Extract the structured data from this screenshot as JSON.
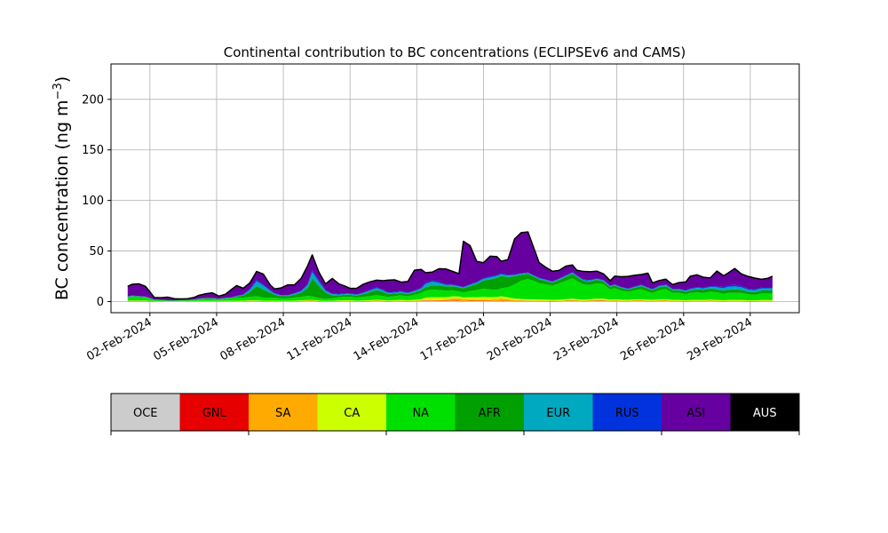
{
  "chart_data": {
    "type": "area",
    "title": "Continental contribution to BC concentrations (ECLIPSEv6 and CAMS)",
    "xlabel": "",
    "ylabel": "BC concentration (ng m⁻³)",
    "xlim": [
      -0.75,
      30.2
    ],
    "ylim": [
      -11,
      235
    ],
    "grid": true,
    "yticks": [
      0,
      50,
      100,
      150,
      200
    ],
    "xtick_positions": [
      1,
      4,
      7,
      10,
      13,
      16,
      19,
      22,
      25,
      28
    ],
    "xtick_labels": [
      "02-Feb-2024",
      "05-Feb-2024",
      "08-Feb-2024",
      "11-Feb-2024",
      "14-Feb-2024",
      "17-Feb-2024",
      "20-Feb-2024",
      "23-Feb-2024",
      "26-Feb-2024",
      "29-Feb-2024"
    ],
    "x_days_since_feb1": [
      0.0,
      0.2,
      0.5,
      0.8,
      1.0,
      1.2,
      1.5,
      1.8,
      2.1,
      2.4,
      2.7,
      3.0,
      3.2,
      3.5,
      3.8,
      4.1,
      4.4,
      4.7,
      4.9,
      5.2,
      5.5,
      5.8,
      6.1,
      6.4,
      6.6,
      6.9,
      7.2,
      7.5,
      7.8,
      8.1,
      8.3,
      8.6,
      8.9,
      9.2,
      9.5,
      9.8,
      10.0,
      10.3,
      10.6,
      10.9,
      11.2,
      11.5,
      11.7,
      12.0,
      12.3,
      12.6,
      12.9,
      13.2,
      13.4,
      13.7,
      14.0,
      14.3,
      14.6,
      14.9,
      15.1,
      15.4,
      15.7,
      16.0,
      16.3,
      16.6,
      16.8,
      17.1,
      17.4,
      17.7,
      18.0,
      18.3,
      18.5,
      18.8,
      19.1,
      19.4,
      19.7,
      20.0,
      20.2,
      20.5,
      20.8,
      21.1,
      21.4,
      21.7,
      21.9,
      22.2,
      22.5,
      22.8,
      23.1,
      23.4,
      23.6,
      23.9,
      24.2,
      24.5,
      24.8,
      25.1,
      25.3,
      25.6,
      25.9,
      26.2,
      26.5,
      26.8,
      27.0,
      27.3,
      27.6,
      27.9,
      28.2,
      28.5,
      28.8,
      29.0
    ],
    "legend": {
      "placement": "below-plot",
      "style": "colorbar",
      "entries": [
        {
          "label": "OCE",
          "color": "#cccccc",
          "text_color": "#000000"
        },
        {
          "label": "GNL",
          "color": "#e60000",
          "text_color": "#000000"
        },
        {
          "label": "SA",
          "color": "#ffaa00",
          "text_color": "#000000"
        },
        {
          "label": "CA",
          "color": "#ccff00",
          "text_color": "#000000"
        },
        {
          "label": "NA",
          "color": "#00e000",
          "text_color": "#000000"
        },
        {
          "label": "AFR",
          "color": "#00a000",
          "text_color": "#000000"
        },
        {
          "label": "EUR",
          "color": "#00a8c0",
          "text_color": "#000000"
        },
        {
          "label": "RUS",
          "color": "#0033dd",
          "text_color": "#000000"
        },
        {
          "label": "ASI",
          "color": "#6600a0",
          "text_color": "#000000"
        },
        {
          "label": "AUS",
          "color": "#000000",
          "text_color": "#ffffff"
        }
      ]
    },
    "series": [
      {
        "name": "OCE",
        "color": "#cccccc",
        "values": [
          0.3,
          0.3,
          0.3,
          0.3,
          0.2,
          0.1,
          0.1,
          0.1,
          0.1,
          0.1,
          0.1,
          0.1,
          0.1,
          0.1,
          0.1,
          0.1,
          0.1,
          0.1,
          0.2,
          0.2,
          0.3,
          0.3,
          0.2,
          0.2,
          0.2,
          0.1,
          0.1,
          0.2,
          0.3,
          0.4,
          0.4,
          0.2,
          0.1,
          0.2,
          0.3,
          0.3,
          0.3,
          0.2,
          0.2,
          0.3,
          0.4,
          0.3,
          0.2,
          0.3,
          0.3,
          0.2,
          0.3,
          0.4,
          0.6,
          0.6,
          0.5,
          0.5,
          0.6,
          0.4,
          0.3,
          0.5,
          0.5,
          0.5,
          0.4,
          0.3,
          0.4,
          0.4,
          0.3,
          0.3,
          0.3,
          0.3,
          0.3,
          0.3,
          0.2,
          0.3,
          0.4,
          0.5,
          0.4,
          0.3,
          0.4,
          0.5,
          0.5,
          0.3,
          0.4,
          0.3,
          0.3,
          0.4,
          0.4,
          0.3,
          0.3,
          0.4,
          0.4,
          0.3,
          0.3,
          0.2,
          0.3,
          0.3,
          0.3,
          0.4,
          0.3,
          0.2,
          0.3,
          0.3,
          0.3,
          0.2,
          0.2,
          0.3,
          0.3,
          0.3
        ]
      },
      {
        "name": "GNL",
        "color": "#e60000",
        "values": [
          0.2,
          0.2,
          0.2,
          0.2,
          0.2,
          0.1,
          0.1,
          0.1,
          0.1,
          0.1,
          0.1,
          0.1,
          0.1,
          0.1,
          0.1,
          0.1,
          0.1,
          0.1,
          0.1,
          0.1,
          0.2,
          0.2,
          0.1,
          0.1,
          0.1,
          0.1,
          0.1,
          0.1,
          0.2,
          0.3,
          0.3,
          0.2,
          0.1,
          0.1,
          0.2,
          0.2,
          0.2,
          0.1,
          0.2,
          0.2,
          0.3,
          0.2,
          0.2,
          0.2,
          0.2,
          0.2,
          0.2,
          0.3,
          0.5,
          0.5,
          0.4,
          0.4,
          0.5,
          0.3,
          0.2,
          0.4,
          0.4,
          0.4,
          0.3,
          0.2,
          0.3,
          0.3,
          0.2,
          0.2,
          0.2,
          0.2,
          0.2,
          0.2,
          0.2,
          0.2,
          0.3,
          0.4,
          0.3,
          0.2,
          0.3,
          0.4,
          0.4,
          0.2,
          0.3,
          0.2,
          0.2,
          0.3,
          0.3,
          0.2,
          0.2,
          0.3,
          0.3,
          0.2,
          0.2,
          0.2,
          0.2,
          0.2,
          0.2,
          0.3,
          0.2,
          0.2,
          0.2,
          0.2,
          0.2,
          0.2,
          0.2,
          0.2,
          0.2,
          0.2
        ]
      },
      {
        "name": "SA",
        "color": "#ffaa00",
        "values": [
          0.1,
          0.1,
          0.1,
          0.1,
          0.1,
          0.1,
          0.1,
          0.1,
          0.1,
          0.1,
          0.1,
          0.1,
          0.1,
          0.1,
          0.1,
          0.1,
          0.1,
          0.1,
          0.1,
          0.1,
          0.1,
          0.1,
          0.1,
          0.1,
          0.1,
          0.1,
          0.1,
          0.1,
          0.1,
          0.1,
          0.1,
          0.1,
          0.1,
          0.1,
          0.1,
          0.1,
          0.1,
          0.1,
          0.1,
          0.1,
          0.1,
          0.1,
          0.1,
          0.1,
          0.1,
          0.1,
          0.2,
          0.2,
          0.3,
          0.3,
          0.5,
          1.0,
          2.0,
          2.5,
          2.0,
          1.5,
          1.0,
          0.8,
          1.2,
          2.0,
          2.5,
          1.5,
          1.0,
          0.8,
          0.6,
          0.5,
          0.4,
          0.3,
          0.3,
          0.2,
          0.2,
          0.2,
          0.2,
          0.2,
          0.2,
          0.3,
          0.3,
          0.2,
          0.2,
          0.2,
          0.2,
          0.2,
          0.2,
          0.2,
          0.2,
          0.2,
          0.2,
          0.2,
          0.2,
          0.1,
          0.1,
          0.1,
          0.1,
          0.1,
          0.1,
          0.1,
          0.1,
          0.1,
          0.1,
          0.1,
          0.1,
          0.1,
          0.1,
          0.1
        ]
      },
      {
        "name": "CA",
        "color": "#ccff00",
        "values": [
          0.4,
          0.4,
          0.4,
          0.4,
          0.3,
          0.2,
          0.2,
          0.1,
          0.1,
          0.2,
          0.2,
          0.2,
          0.3,
          0.3,
          0.3,
          0.3,
          0.4,
          0.4,
          0.5,
          0.5,
          0.6,
          0.6,
          0.5,
          0.5,
          0.5,
          0.4,
          0.4,
          0.5,
          0.6,
          0.8,
          0.8,
          0.5,
          0.3,
          0.4,
          0.6,
          0.7,
          0.7,
          0.5,
          0.6,
          0.8,
          1.0,
          0.8,
          0.6,
          0.8,
          1.0,
          0.8,
          1.0,
          1.5,
          2.5,
          3.0,
          3.0,
          2.5,
          2.0,
          1.8,
          1.5,
          2.0,
          2.5,
          3.0,
          2.5,
          2.0,
          2.0,
          2.0,
          1.5,
          1.3,
          1.2,
          1.2,
          1.2,
          1.2,
          1.0,
          1.2,
          1.5,
          1.8,
          1.5,
          1.2,
          1.5,
          1.8,
          1.8,
          1.2,
          1.4,
          1.2,
          1.0,
          1.3,
          1.4,
          1.1,
          1.0,
          1.3,
          1.4,
          1.0,
          1.0,
          0.8,
          1.0,
          1.0,
          1.0,
          1.2,
          1.0,
          0.8,
          1.0,
          1.0,
          1.0,
          0.8,
          0.7,
          0.9,
          0.9,
          0.9
        ]
      },
      {
        "name": "NA",
        "color": "#00e000",
        "values": [
          3.0,
          4.0,
          3.5,
          3.0,
          2.0,
          1.0,
          0.8,
          0.6,
          0.5,
          0.6,
          0.8,
          1.0,
          1.5,
          2.0,
          2.0,
          1.5,
          2.0,
          2.5,
          3.0,
          3.0,
          3.5,
          4.0,
          3.0,
          3.0,
          3.0,
          2.5,
          2.5,
          3.0,
          3.5,
          4.0,
          3.5,
          2.5,
          2.0,
          2.5,
          3.0,
          3.5,
          3.5,
          3.0,
          3.5,
          4.0,
          4.5,
          4.0,
          3.5,
          4.0,
          4.5,
          4.0,
          5.0,
          6.0,
          7.0,
          7.5,
          7.0,
          6.5,
          6.0,
          5.0,
          5.0,
          6.0,
          7.0,
          8.0,
          7.5,
          7.0,
          8.0,
          10.0,
          14.0,
          18.0,
          20.0,
          18.0,
          16.0,
          15.0,
          14.0,
          16.0,
          18.0,
          20.0,
          18.0,
          15.0,
          14.0,
          15.0,
          14.0,
          10.0,
          11.0,
          9.0,
          8.0,
          9.0,
          10.0,
          8.0,
          7.0,
          9.0,
          10.0,
          7.0,
          7.0,
          6.0,
          7.0,
          7.5,
          7.0,
          8.0,
          7.5,
          6.5,
          7.0,
          7.0,
          7.0,
          6.0,
          5.5,
          6.5,
          6.5,
          6.5
        ]
      },
      {
        "name": "AFR",
        "color": "#00a000",
        "values": [
          0.5,
          0.5,
          0.5,
          0.5,
          0.4,
          0.2,
          0.2,
          0.1,
          0.1,
          0.2,
          0.2,
          0.3,
          0.5,
          0.5,
          0.5,
          0.4,
          0.5,
          0.6,
          1.0,
          2.0,
          5.0,
          10.0,
          8.0,
          5.0,
          3.0,
          2.0,
          2.0,
          3.0,
          4.0,
          8.0,
          18.0,
          12.0,
          6.0,
          3.0,
          2.0,
          2.0,
          2.0,
          2.0,
          3.0,
          4.0,
          5.0,
          4.0,
          3.0,
          2.5,
          2.5,
          2.0,
          2.5,
          3.0,
          3.5,
          4.0,
          4.5,
          4.0,
          4.0,
          4.0,
          4.0,
          5.0,
          6.0,
          8.0,
          10.0,
          12.0,
          12.0,
          10.0,
          8.0,
          6.0,
          5.0,
          4.0,
          4.0,
          3.5,
          3.0,
          3.5,
          4.0,
          4.5,
          4.0,
          3.5,
          3.5,
          3.5,
          3.0,
          2.5,
          2.5,
          2.5,
          2.0,
          2.5,
          3.0,
          3.0,
          2.5,
          3.0,
          3.0,
          2.5,
          2.5,
          2.5,
          2.5,
          3.0,
          3.0,
          3.0,
          3.0,
          3.0,
          3.0,
          3.5,
          3.0,
          2.5,
          2.5,
          3.0,
          3.0,
          3.0
        ]
      },
      {
        "name": "EUR",
        "color": "#00a8c0",
        "values": [
          0.3,
          0.3,
          0.3,
          0.3,
          0.2,
          0.1,
          0.1,
          0.1,
          0.1,
          0.1,
          0.1,
          0.2,
          0.3,
          0.3,
          0.3,
          0.2,
          0.3,
          0.4,
          0.5,
          0.8,
          2.0,
          5.0,
          4.0,
          2.0,
          1.0,
          0.8,
          0.8,
          1.0,
          1.5,
          3.0,
          6.0,
          4.0,
          2.0,
          1.0,
          0.8,
          0.8,
          0.8,
          0.8,
          1.0,
          1.5,
          2.0,
          1.5,
          1.0,
          1.0,
          1.0,
          1.0,
          1.2,
          1.5,
          3.0,
          4.0,
          2.5,
          1.5,
          1.2,
          1.0,
          1.0,
          1.2,
          1.5,
          1.8,
          2.0,
          2.0,
          1.8,
          1.5,
          1.2,
          1.0,
          1.0,
          1.0,
          1.0,
          0.9,
          0.8,
          0.9,
          1.0,
          1.2,
          1.0,
          0.9,
          1.0,
          1.0,
          0.9,
          0.8,
          0.8,
          0.7,
          0.7,
          0.8,
          0.9,
          0.8,
          0.8,
          1.0,
          1.2,
          1.0,
          1.0,
          1.0,
          1.2,
          1.5,
          1.5,
          1.5,
          2.0,
          2.5,
          3.0,
          3.0,
          2.5,
          2.0,
          2.0,
          2.0,
          2.0,
          2.0
        ]
      },
      {
        "name": "RUS",
        "color": "#0033dd",
        "values": [
          0.2,
          0.2,
          0.2,
          0.2,
          0.2,
          0.1,
          0.1,
          0.1,
          0.1,
          0.1,
          0.1,
          0.1,
          0.2,
          0.2,
          0.2,
          0.1,
          0.2,
          0.2,
          0.3,
          0.4,
          0.8,
          1.5,
          1.2,
          0.8,
          0.5,
          0.4,
          0.4,
          0.5,
          0.6,
          1.0,
          2.0,
          1.5,
          0.8,
          0.5,
          0.4,
          0.4,
          0.4,
          0.4,
          0.5,
          0.6,
          0.8,
          0.6,
          0.5,
          0.5,
          0.5,
          0.5,
          0.6,
          0.8,
          1.0,
          1.2,
          1.0,
          0.8,
          0.6,
          0.5,
          0.5,
          0.6,
          0.7,
          0.8,
          0.9,
          0.9,
          0.8,
          0.7,
          0.6,
          0.5,
          0.5,
          0.5,
          0.5,
          0.4,
          0.4,
          0.4,
          0.5,
          0.5,
          0.5,
          0.4,
          0.5,
          0.5,
          0.4,
          0.4,
          0.4,
          0.4,
          0.4,
          0.4,
          0.5,
          0.4,
          0.4,
          0.5,
          0.6,
          0.5,
          0.5,
          0.5,
          0.6,
          0.8,
          0.8,
          0.8,
          1.0,
          1.2,
          1.5,
          1.5,
          1.2,
          1.0,
          1.0,
          1.0,
          1.0,
          1.0
        ]
      },
      {
        "name": "ASI",
        "color": "#6600a0",
        "values": [
          10.0,
          11.0,
          12.0,
          10.0,
          6.0,
          2.0,
          2.0,
          3.0,
          1.5,
          1.0,
          1.0,
          2.0,
          3.0,
          4.0,
          5.0,
          2.5,
          3.5,
          8.0,
          10.0,
          6.0,
          6.0,
          8.0,
          10.0,
          5.0,
          4.0,
          7.0,
          10.0,
          8.0,
          12.0,
          18.0,
          15.0,
          8.0,
          6.0,
          15.0,
          10.0,
          7.0,
          5.0,
          6.0,
          8.0,
          8.0,
          7.0,
          9.0,
          12.0,
          12.0,
          9.0,
          11.0,
          20.0,
          18.0,
          10.0,
          8.0,
          13.0,
          15.0,
          13.0,
          12.0,
          45.0,
          38.0,
          20.0,
          15.0,
          20.0,
          18.0,
          12.0,
          15.0,
          35.0,
          40.0,
          40.0,
          25.0,
          15.0,
          12.0,
          10.0,
          8.0,
          9.0,
          7.0,
          5.0,
          8.0,
          8.0,
          7.0,
          6.0,
          5.0,
          8.0,
          10.0,
          12.0,
          11.0,
          10.0,
          14.0,
          6.0,
          5.0,
          5.0,
          4.0,
          6.0,
          8.0,
          12.0,
          12.0,
          10.0,
          8.0,
          15.0,
          11.0,
          12.0,
          16.0,
          12.0,
          12.0,
          11.0,
          8.0,
          9.0,
          11.0
        ]
      },
      {
        "name": "AUS",
        "color": "#000000",
        "values": [
          0.1,
          0.1,
          0.1,
          0.1,
          0.1,
          0.1,
          0.1,
          0.1,
          0.1,
          0.1,
          0.1,
          0.1,
          0.1,
          0.1,
          0.1,
          0.1,
          0.1,
          0.1,
          0.1,
          0.1,
          0.1,
          0.1,
          0.1,
          0.1,
          0.1,
          0.1,
          0.1,
          0.1,
          0.1,
          0.1,
          0.1,
          0.1,
          0.1,
          0.1,
          0.1,
          0.1,
          0.1,
          0.1,
          0.1,
          0.1,
          0.1,
          0.1,
          0.1,
          0.1,
          0.1,
          0.1,
          0.1,
          0.1,
          0.1,
          0.1,
          0.1,
          0.1,
          0.1,
          0.1,
          0.1,
          0.1,
          0.1,
          0.1,
          0.1,
          0.1,
          0.1,
          0.1,
          0.1,
          0.1,
          0.1,
          0.1,
          0.1,
          0.1,
          0.1,
          0.1,
          0.1,
          0.1,
          0.1,
          0.1,
          0.1,
          0.1,
          0.1,
          0.1,
          0.1,
          0.1,
          0.1,
          0.1,
          0.1,
          0.1,
          0.1,
          0.1,
          0.1,
          0.1,
          0.1,
          0.1,
          0.1,
          0.1,
          0.1,
          0.1,
          0.1,
          0.1,
          0.1,
          0.1,
          0.1,
          0.1,
          0.1,
          0.1,
          0.1,
          0.1
        ]
      }
    ]
  }
}
